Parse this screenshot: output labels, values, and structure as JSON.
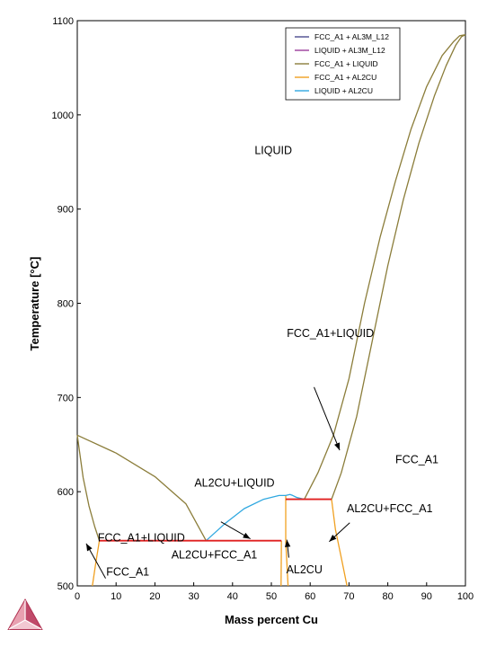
{
  "chart_data": {
    "type": "line",
    "xlabel": "Mass percent Cu",
    "ylabel": "Temperature [°C]",
    "xlim": [
      0,
      100
    ],
    "ylim": [
      500,
      1100
    ],
    "xticks": [
      "0",
      "10",
      "20",
      "30",
      "40",
      "50",
      "60",
      "70",
      "80",
      "90",
      "100"
    ],
    "yticks": [
      "500",
      "600",
      "700",
      "800",
      "900",
      "1000",
      "1100"
    ],
    "legend_position": "top-right",
    "series": [
      {
        "name": "FCC_A1 + AL3M_L12",
        "color": "#4b4b8f",
        "segments": []
      },
      {
        "name": "LIQUID + AL3M_L12",
        "color": "#9b3d9b",
        "segments": []
      },
      {
        "name": "FCC_A1 + LIQUID",
        "color": "#8b7d3a",
        "segments": [
          [
            [
              0,
              660
            ],
            [
              10,
              641
            ],
            [
              20,
              616
            ],
            [
              28,
              587
            ],
            [
              33.2,
              548
            ]
          ],
          [
            [
              0,
              660
            ],
            [
              1.5,
              615
            ],
            [
              3,
              585
            ],
            [
              4.5,
              563
            ],
            [
              5.7,
              548
            ]
          ],
          [
            [
              58.5,
              592
            ],
            [
              62,
              620
            ],
            [
              66,
              660
            ],
            [
              70,
              720
            ],
            [
              74,
              800
            ],
            [
              78,
              870
            ],
            [
              82,
              930
            ],
            [
              86,
              985
            ],
            [
              90,
              1030
            ],
            [
              94,
              1063
            ],
            [
              97,
              1078
            ],
            [
              98.5,
              1084
            ],
            [
              100,
              1085
            ]
          ],
          [
            [
              65.5,
              592
            ],
            [
              68,
              620
            ],
            [
              72,
              680
            ],
            [
              76,
              760
            ],
            [
              80,
              840
            ],
            [
              84,
              910
            ],
            [
              88,
              970
            ],
            [
              92,
              1020
            ],
            [
              95,
              1052
            ],
            [
              97.5,
              1074
            ],
            [
              99,
              1083
            ],
            [
              100,
              1085
            ]
          ]
        ]
      },
      {
        "name": "FCC_A1 + AL2CU",
        "color": "#f0a020",
        "segments": [
          [
            [
              5.7,
              548
            ],
            [
              4.8,
              525
            ],
            [
              3.9,
              500
            ]
          ],
          [
            [
              52.6,
              548
            ],
            [
              52.5,
              500
            ]
          ],
          [
            [
              53.7,
              548
            ],
            [
              53.7,
              596
            ]
          ],
          [
            [
              53.7,
              548
            ],
            [
              54.3,
              500
            ]
          ],
          [
            [
              65.5,
              592
            ],
            [
              66.5,
              560
            ],
            [
              68,
              530
            ],
            [
              69.5,
              500
            ]
          ]
        ]
      },
      {
        "name": "LIQUID + AL2CU",
        "color": "#30a8e0",
        "segments": [
          [
            [
              33.2,
              548
            ],
            [
              38,
              566
            ],
            [
              43,
              582
            ],
            [
              48,
              592
            ],
            [
              52,
              596
            ],
            [
              53.7,
              596
            ]
          ],
          [
            [
              53.7,
              596
            ],
            [
              54.8,
              597
            ],
            [
              55.5,
              596
            ],
            [
              56.5,
              594
            ],
            [
              58.5,
              592
            ]
          ]
        ]
      }
    ],
    "tie_lines": [
      {
        "x": [
          5.7,
          52.6
        ],
        "y": 548,
        "color": "#e02020"
      },
      {
        "x": [
          53.7,
          65.5
        ],
        "y": 592,
        "color": "#e02020"
      }
    ],
    "annotations": [
      {
        "text": "LIQUID",
        "x": 50.5,
        "y": 962
      },
      {
        "text": "FCC_A1+LIQUID",
        "x": 65.2,
        "y": 768
      },
      {
        "text": "AL2CU+LIQUID",
        "x": 40.5,
        "y": 609
      },
      {
        "text": "FCC_A1+LIQUID",
        "x": 16.5,
        "y": 551
      },
      {
        "text": "AL2CU+FCC_A1",
        "x": 35.3,
        "y": 533
      },
      {
        "text": "FCC_A1",
        "x": 13,
        "y": 515
      },
      {
        "text": "AL2CU",
        "x": 58.5,
        "y": 517
      },
      {
        "text": "AL2CU+FCC_A1",
        "x": 80.5,
        "y": 582
      },
      {
        "text": "FCC_A1",
        "x": 87.5,
        "y": 634
      }
    ],
    "arrows": [
      {
        "from": [
          61,
          711
        ],
        "to": [
          67.6,
          644
        ]
      },
      {
        "from": [
          37,
          568
        ],
        "to": [
          44.6,
          550
        ]
      },
      {
        "from": [
          7.3,
          508
        ],
        "to": [
          2.3,
          545
        ]
      },
      {
        "from": [
          54.5,
          530
        ],
        "to": [
          54,
          549
        ]
      },
      {
        "from": [
          70.2,
          567
        ],
        "to": [
          64.9,
          547
        ]
      }
    ]
  }
}
